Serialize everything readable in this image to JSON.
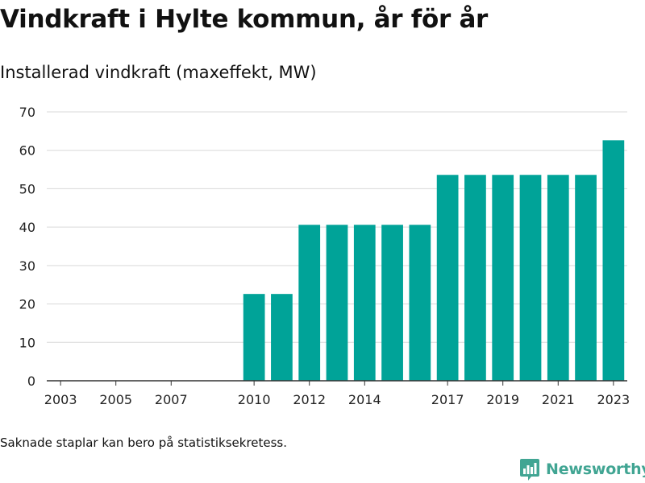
{
  "title": "Vindkraft i Hylte kommun, år för år",
  "subtitle": "Installerad vindkraft (maxeffekt, MW)",
  "footnote": "Saknade staplar kan bero på statistiksekretess.",
  "brand": {
    "name": "Newsworthy",
    "icon": "newsworthy-logo-icon"
  },
  "colors": {
    "bar": "#00a398",
    "grid": "#d9d9d9",
    "axis": "#333333",
    "brand": "#41a593"
  },
  "chart_data": {
    "type": "bar",
    "categories": [
      "2003",
      "2004",
      "2005",
      "2006",
      "2007",
      "2008",
      "2009",
      "2010",
      "2011",
      "2012",
      "2013",
      "2014",
      "2015",
      "2016",
      "2017",
      "2018",
      "2019",
      "2020",
      "2021",
      "2022",
      "2023"
    ],
    "values": [
      0,
      0,
      0,
      0,
      0,
      0,
      0,
      22.6,
      22.6,
      40.6,
      40.6,
      40.6,
      40.6,
      40.6,
      53.6,
      53.6,
      53.6,
      53.6,
      53.6,
      53.6,
      62.6
    ],
    "x_tick_labels": [
      "2003",
      "2005",
      "2007",
      "2010",
      "2012",
      "2014",
      "2017",
      "2019",
      "2021",
      "2023"
    ],
    "y_ticks": [
      0,
      10,
      20,
      30,
      40,
      50,
      60,
      70
    ],
    "ylim": [
      0,
      70
    ],
    "grid": true,
    "legend": "none"
  }
}
